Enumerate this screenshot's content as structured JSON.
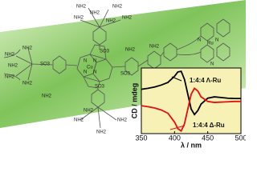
{
  "structure_labels": [
    "NH2",
    "NH2",
    "NH2",
    "NH2",
    "NH2",
    "NH2",
    "NH2",
    "NH2",
    "NH2",
    "NH2",
    "NH2",
    "NH2",
    "NH2",
    "NH2",
    "NH2",
    "NH2",
    "NH2",
    "NH2",
    "SO3",
    "SO3",
    "SO3",
    "SO3",
    "Cu",
    "N",
    "N",
    "N",
    "N",
    "Ru",
    "N",
    "N",
    "N"
  ],
  "chart_data": {
    "type": "line",
    "y_label": "CD / mdeg",
    "x_label": "λ / nm",
    "xlim": [
      350,
      500
    ],
    "xticks": [
      350,
      400,
      450,
      500
    ],
    "ylim": [
      -10,
      10
    ],
    "background": "#f7f1b5",
    "x": [
      350,
      360,
      370,
      380,
      390,
      400,
      405,
      410,
      415,
      420,
      425,
      430,
      435,
      440,
      450,
      460,
      470,
      480,
      490,
      500
    ],
    "series": [
      {
        "name": "1:4:4 Λ-Ru",
        "color": "#000000",
        "values": [
          3.5,
          3.8,
          4.2,
          4.8,
          5.6,
          7.5,
          8.8,
          9.0,
          6.5,
          2.0,
          -2.5,
          -4.2,
          -3.0,
          -1.0,
          0.8,
          1.2,
          1.0,
          0.8,
          0.7,
          0.7
        ]
      },
      {
        "name": "1:4:4 Δ-Ru",
        "color": "#e01010",
        "values": [
          -1.5,
          -1.8,
          -2.2,
          -2.8,
          -3.8,
          -6.5,
          -8.5,
          -9.2,
          -7.0,
          -2.5,
          2.0,
          3.8,
          3.0,
          1.2,
          -0.2,
          -0.5,
          -0.4,
          -0.3,
          -0.2,
          -0.2
        ]
      }
    ]
  }
}
